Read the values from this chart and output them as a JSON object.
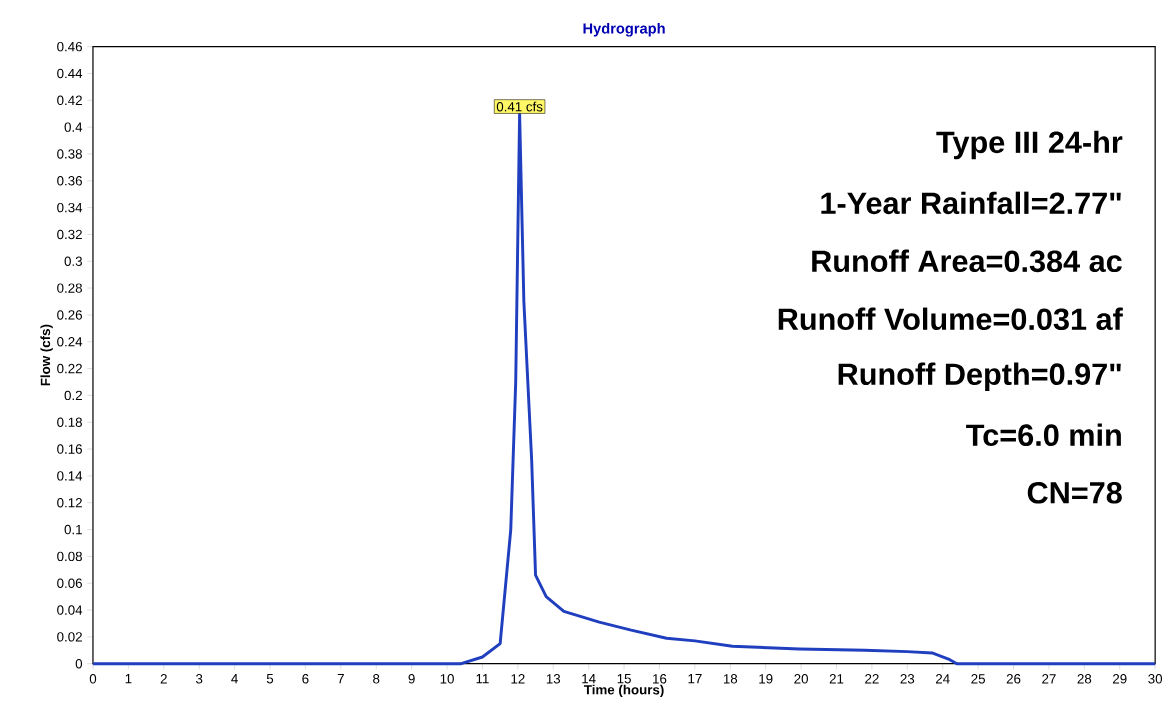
{
  "chart_data": {
    "type": "line",
    "title": "Hydrograph",
    "xlabel": "Time  (hours)",
    "ylabel": "Flow  (cfs)",
    "x": [
      0,
      10.4,
      11.0,
      11.5,
      11.8,
      11.94,
      12.05,
      12.17,
      12.39,
      12.5,
      12.8,
      13.3,
      14.3,
      15.2,
      16.2,
      17.0,
      18.06,
      19.95,
      21.8,
      23.0,
      23.7,
      24.2,
      24.4,
      30
    ],
    "series": [
      {
        "color": "#1f3fbf",
        "values": [
          0,
          0,
          0.005,
          0.015,
          0.1,
          0.21,
          0.41,
          0.27,
          0.152,
          0.066,
          0.05,
          0.039,
          0.031,
          0.025,
          0.019,
          0.017,
          0.013,
          0.011,
          0.01,
          0.009,
          0.008,
          0.003,
          0,
          0
        ]
      }
    ],
    "xlim": [
      0,
      30
    ],
    "ylim": [
      0,
      0.46
    ],
    "xticks": [
      0,
      1,
      2,
      3,
      4,
      5,
      6,
      7,
      8,
      9,
      10,
      11,
      12,
      13,
      14,
      15,
      16,
      17,
      18,
      19,
      20,
      21,
      22,
      23,
      24,
      25,
      26,
      27,
      28,
      29,
      30
    ],
    "yticks": [
      0,
      0.02,
      0.04,
      0.06,
      0.08,
      0.1,
      0.12,
      0.14,
      0.16,
      0.18,
      0.2,
      0.22,
      0.24,
      0.26,
      0.28,
      0.3,
      0.32,
      0.34,
      0.36,
      0.38,
      0.4,
      0.42,
      0.44,
      0.46
    ],
    "annotations": [
      {
        "text": "0.41 cfs",
        "x": 12.05,
        "y": 0.41
      },
      "Type III 24-hr",
      "1-Year Rainfall=2.77\"",
      "Runoff Area=0.384 ac",
      "Runoff Volume=0.031 af",
      "Runoff Depth=0.97\"",
      "Tc=6.0 min",
      "CN=78"
    ],
    "grid": false,
    "marker": "none",
    "line_style": "solid"
  }
}
